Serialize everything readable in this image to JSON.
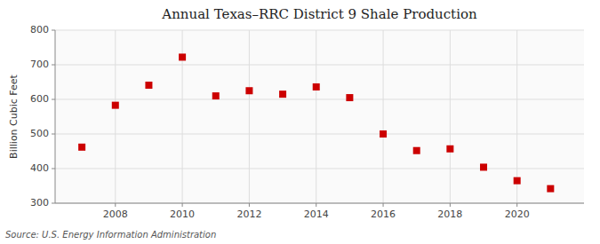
{
  "chart_data": {
    "type": "scatter",
    "title": "Annual Texas–RRC District 9 Shale Production",
    "ylabel": "Billion Cubic Feet",
    "source": "Source: U.S. Energy Information Administration",
    "x": [
      2007,
      2008,
      2009,
      2010,
      2011,
      2012,
      2013,
      2014,
      2015,
      2016,
      2017,
      2018,
      2019,
      2020,
      2021
    ],
    "values": [
      462,
      583,
      641,
      722,
      610,
      625,
      615,
      636,
      605,
      500,
      452,
      457,
      404,
      365,
      342
    ],
    "color": "#cc0000",
    "marker": "square",
    "xlim": [
      2006.2,
      2022.0
    ],
    "ylim": [
      300,
      800
    ],
    "xticks": [
      2008,
      2010,
      2012,
      2014,
      2016,
      2018,
      2020
    ],
    "yticks": [
      300,
      400,
      500,
      600,
      700,
      800
    ],
    "grid": true
  }
}
